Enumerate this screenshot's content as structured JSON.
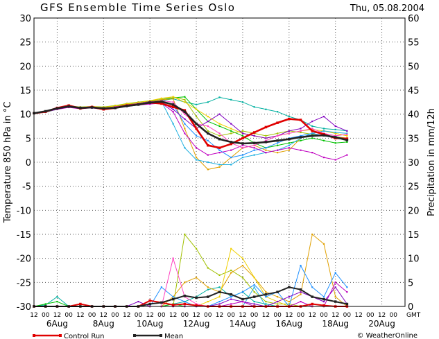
{
  "chart_data": {
    "type": "line",
    "title": "GFS Ensemble Time Series Oslo",
    "date_label": "Thu, 05.08.2004",
    "ylabel_left": "Temperature 850 hPa in °C",
    "ylabel_right": "Precipitation in mm/12h",
    "ylim_left": [
      -30,
      30
    ],
    "ylim_right": [
      0,
      60
    ],
    "left_ticks": [
      "30",
      "25",
      "20",
      "15",
      "10",
      "5",
      "0",
      "-5",
      "-10",
      "-15",
      "-20",
      "-25",
      "-30"
    ],
    "right_ticks": [
      "60",
      "55",
      "50",
      "45",
      "40",
      "35",
      "30",
      "25",
      "20",
      "15",
      "10",
      "5",
      "0"
    ],
    "x_hour_labels": [
      "12",
      "00",
      "12",
      "00",
      "12",
      "00",
      "12",
      "00",
      "12",
      "00",
      "12",
      "00",
      "12",
      "00",
      "12",
      "00",
      "12",
      "00",
      "12",
      "00",
      "12",
      "00",
      "12",
      "00",
      "12",
      "00",
      "12",
      "00",
      "12",
      "00",
      "12",
      "00"
    ],
    "gmt_label": "GMT",
    "x_day_labels": [
      "6Aug",
      "8Aug",
      "10Aug",
      "12Aug",
      "14Aug",
      "16Aug",
      "18Aug",
      "20Aug"
    ],
    "grid": true,
    "legend_position": "bottom-left",
    "credit": "© WeatherOnline",
    "series": [
      {
        "name": "Control Run",
        "color": "#e00000",
        "role": "control",
        "values": [
          10.2,
          10.5,
          11.3,
          11.8,
          11.2,
          11.5,
          11.0,
          11.3,
          11.8,
          12.0,
          12.4,
          12.2,
          11.5,
          10.8,
          7.0,
          3.5,
          3.0,
          3.8,
          5.0,
          6.2,
          7.3,
          8.2,
          9.0,
          8.8,
          6.5,
          5.8,
          5.0,
          4.9
        ],
        "precip": [
          0,
          0,
          0,
          0,
          0.5,
          0,
          0,
          0,
          0,
          0,
          1.2,
          0.8,
          0.3,
          0.5,
          0.2,
          0,
          0,
          0,
          0,
          0,
          0,
          0,
          0,
          0,
          0.5,
          0.2,
          0,
          0
        ]
      },
      {
        "name": "Mean",
        "color": "#222222",
        "role": "mean",
        "values": [
          10.2,
          10.6,
          11.2,
          11.6,
          11.3,
          11.4,
          11.2,
          11.3,
          11.7,
          12.0,
          12.4,
          12.6,
          12.0,
          10.5,
          8.0,
          6.0,
          4.8,
          4.2,
          3.9,
          4.0,
          4.2,
          4.5,
          4.8,
          5.2,
          5.5,
          5.6,
          5.2,
          4.6
        ],
        "precip": [
          0,
          0,
          0,
          0,
          0,
          0,
          0,
          0,
          0,
          0,
          0.5,
          0.8,
          1.5,
          2.2,
          1.8,
          2.0,
          3.0,
          2.5,
          1.5,
          2.0,
          2.5,
          3.0,
          4.0,
          3.5,
          2.0,
          1.5,
          1.0,
          0.5
        ]
      },
      {
        "color": "#00b0a0",
        "values": [
          10.2,
          10.5,
          11.0,
          11.5,
          11.3,
          11.5,
          11.2,
          11.5,
          12.0,
          12.3,
          12.5,
          12.8,
          13.2,
          12.5,
          12.0,
          12.5,
          13.5,
          13.0,
          12.5,
          11.5,
          11.0,
          10.5,
          9.5,
          8.8,
          7.5,
          7.0,
          6.8,
          6.5
        ],
        "precip": [
          0,
          0.3,
          2.0,
          0,
          0,
          0,
          0,
          0,
          0,
          0,
          0,
          0,
          0.5,
          1.0,
          2.0,
          3.5,
          4.0,
          2.0,
          3.0,
          1.0,
          0.5,
          0,
          0,
          0,
          0,
          0,
          0,
          0
        ]
      },
      {
        "color": "#00c000",
        "values": [
          10.2,
          10.5,
          11.1,
          11.6,
          11.4,
          11.5,
          11.3,
          11.6,
          12.0,
          12.4,
          12.7,
          13.0,
          13.4,
          13.6,
          11.0,
          8.5,
          7.5,
          6.5,
          5.5,
          4.0,
          3.0,
          3.5,
          4.0,
          4.5,
          5.0,
          4.5,
          4.0,
          4.2
        ],
        "precip": [
          0,
          0.5,
          1.0,
          0,
          0,
          0,
          0,
          0,
          0,
          0,
          0,
          0,
          0.5,
          0,
          0,
          0,
          0,
          0,
          0,
          0,
          0,
          0,
          0,
          0,
          0,
          0,
          0,
          0
        ]
      },
      {
        "color": "#a0c000",
        "values": [
          10.2,
          10.4,
          11.0,
          11.7,
          11.5,
          11.6,
          11.5,
          11.8,
          12.2,
          12.5,
          12.8,
          13.2,
          13.6,
          13.0,
          9.5,
          6.5,
          5.5,
          6.0,
          6.5,
          6.0,
          5.5,
          6.0,
          6.5,
          6.2,
          5.8,
          5.5,
          5.3,
          5.0
        ],
        "precip": [
          0,
          0,
          0,
          0,
          0,
          0,
          0,
          0,
          0,
          0,
          0,
          0,
          0,
          15.0,
          12.0,
          8.0,
          6.5,
          7.5,
          6.0,
          3.0,
          1.0,
          0.5,
          0.5,
          0,
          0,
          0,
          0,
          0
        ]
      },
      {
        "color": "#e0a000",
        "values": [
          10.2,
          10.5,
          11.0,
          11.6,
          11.3,
          11.4,
          11.1,
          11.4,
          11.9,
          12.2,
          12.6,
          13.0,
          13.2,
          7.0,
          1.0,
          -1.5,
          -1.0,
          1.0,
          3.0,
          3.5,
          2.5,
          2.0,
          2.5,
          5.0,
          6.0,
          6.5,
          6.0,
          5.5
        ],
        "precip": [
          0,
          0,
          0,
          0,
          0,
          0,
          0,
          0,
          0,
          0,
          0,
          0,
          2.0,
          5.0,
          6.0,
          4.0,
          3.0,
          7.0,
          8.5,
          6.0,
          3.0,
          2.0,
          1.0,
          2.5,
          15.0,
          13.0,
          2.0,
          0
        ]
      },
      {
        "color": "#f0d000",
        "values": [
          10.2,
          10.5,
          11.2,
          11.8,
          11.4,
          11.6,
          11.4,
          11.7,
          12.1,
          12.4,
          12.8,
          13.3,
          13.6,
          12.5,
          11.0,
          9.5,
          8.0,
          7.0,
          6.0,
          5.5,
          5.0,
          5.5,
          6.0,
          6.5,
          6.8,
          6.5,
          6.0,
          5.5
        ],
        "precip": [
          0,
          0,
          0,
          0,
          0,
          0,
          0,
          0,
          0,
          0,
          0,
          0,
          0,
          0,
          0,
          1.0,
          2.0,
          12.0,
          10.0,
          6.0,
          2.0,
          1.0,
          0,
          0,
          0,
          0,
          0,
          0
        ]
      },
      {
        "color": "#1e90ff",
        "values": [
          10.2,
          10.4,
          11.0,
          11.5,
          11.2,
          11.3,
          11.0,
          11.2,
          11.6,
          11.9,
          12.2,
          12.4,
          12.0,
          8.0,
          5.5,
          4.5,
          2.5,
          1.0,
          1.5,
          2.5,
          3.0,
          4.0,
          5.0,
          5.5,
          6.0,
          5.5,
          5.0,
          4.8
        ],
        "precip": [
          0,
          0,
          0,
          0,
          0,
          0,
          0,
          0,
          0,
          0,
          0,
          4.0,
          2.0,
          1.0,
          0,
          0,
          1.0,
          2.0,
          3.0,
          4.5,
          2.0,
          3.0,
          0,
          8.5,
          4.0,
          2.0,
          7.0,
          4.0
        ]
      },
      {
        "color": "#20b0e0",
        "values": [
          10.2,
          10.5,
          11.1,
          11.6,
          11.3,
          11.4,
          11.1,
          11.3,
          11.8,
          12.1,
          12.4,
          12.6,
          8.0,
          3.0,
          0.5,
          0.0,
          -0.5,
          -0.5,
          1.0,
          1.5,
          2.0,
          2.5,
          3.5,
          5.0,
          6.0,
          6.5,
          6.2,
          6.0
        ],
        "precip": [
          0,
          0,
          0,
          0,
          0,
          0,
          0,
          0,
          0,
          0,
          0,
          0,
          0,
          0,
          0,
          0,
          0,
          0,
          0,
          4.0,
          0,
          0,
          0,
          0,
          0,
          0,
          0,
          0
        ]
      },
      {
        "color": "#8000c0",
        "values": [
          10.2,
          10.6,
          11.2,
          11.7,
          11.4,
          11.5,
          11.2,
          11.5,
          11.9,
          12.2,
          12.6,
          12.5,
          11.0,
          9.0,
          7.0,
          8.5,
          10.0,
          8.0,
          6.0,
          5.5,
          5.0,
          5.5,
          6.5,
          7.0,
          8.5,
          9.5,
          7.5,
          6.5
        ],
        "precip": [
          0,
          0,
          0,
          0,
          0,
          0,
          0,
          0,
          0,
          1.0,
          0,
          0,
          0,
          0,
          0,
          0,
          0.5,
          1.5,
          1.0,
          0.5,
          0,
          1.0,
          2.0,
          3.0,
          2.0,
          1.0,
          4.0,
          0.5
        ]
      },
      {
        "color": "#c000c0",
        "values": [
          10.2,
          10.5,
          11.0,
          11.4,
          11.1,
          11.3,
          11.0,
          11.2,
          11.6,
          11.9,
          12.1,
          12.3,
          10.5,
          6.0,
          3.0,
          1.5,
          2.0,
          2.5,
          3.5,
          3.0,
          2.0,
          2.5,
          3.0,
          2.5,
          2.0,
          1.0,
          0.5,
          1.5
        ],
        "precip": [
          0,
          0,
          0,
          0,
          0,
          0,
          0,
          0,
          0,
          0,
          0,
          0,
          0,
          0,
          0,
          0,
          0,
          0.5,
          1.0,
          0,
          0,
          0,
          0,
          1.0,
          0,
          0,
          5.0,
          3.0
        ]
      },
      {
        "color": "#ff40c0",
        "values": [
          10.2,
          10.5,
          11.1,
          11.7,
          11.4,
          11.5,
          11.3,
          11.5,
          11.9,
          12.2,
          12.5,
          12.8,
          12.5,
          10.0,
          8.0,
          7.5,
          6.0,
          4.0,
          3.0,
          3.5,
          4.5,
          5.5,
          6.0,
          6.5,
          7.0,
          6.0,
          5.5,
          5.8
        ],
        "precip": [
          0,
          0,
          0,
          0,
          0,
          0,
          0,
          0,
          0,
          0,
          0,
          0,
          10.0,
          2.0,
          0.5,
          0,
          0,
          0,
          0,
          0,
          0,
          0,
          0,
          0,
          0,
          0,
          0,
          0
        ]
      }
    ]
  },
  "legend": {
    "control_label": "Control Run",
    "mean_label": "Mean"
  }
}
